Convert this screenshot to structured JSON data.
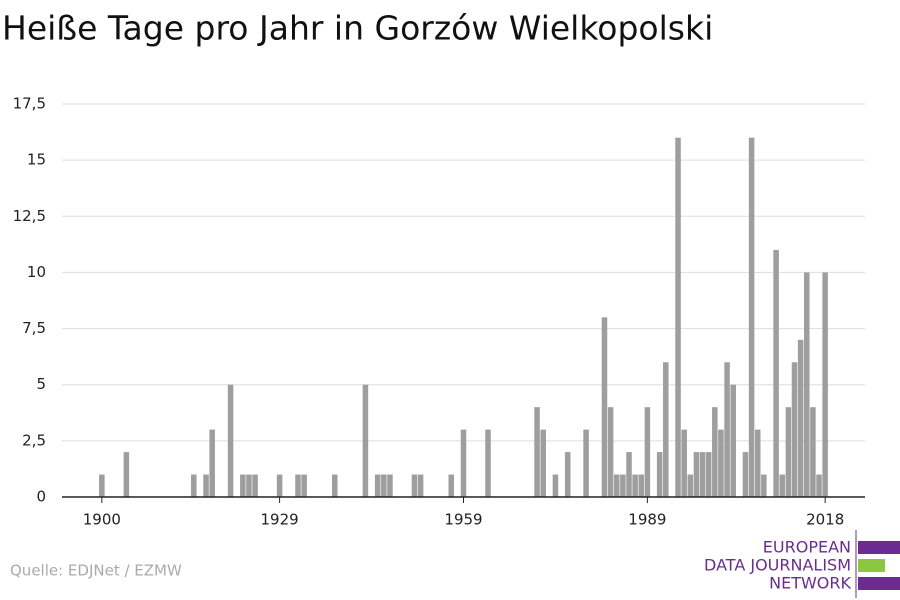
{
  "chart_data": {
    "type": "bar",
    "title": "Heiße Tage pro Jahr in Gorzów Wielkopolski",
    "source": "Quelle: EDJNet / EZMW",
    "logo": [
      "EUROPEAN",
      "DATA JOURNALISM",
      "NETWORK"
    ],
    "color": "#9e9e9e",
    "x": [
      1900,
      1904,
      1915,
      1917,
      1918,
      1921,
      1923,
      1924,
      1925,
      1929,
      1932,
      1933,
      1938,
      1943,
      1945,
      1946,
      1947,
      1951,
      1952,
      1957,
      1959,
      1963,
      1971,
      1972,
      1974,
      1976,
      1979,
      1982,
      1983,
      1984,
      1985,
      1986,
      1987,
      1988,
      1989,
      1991,
      1992,
      1994,
      1995,
      1996,
      1997,
      1998,
      1999,
      2000,
      2001,
      2002,
      2003,
      2005,
      2006,
      2007,
      2008,
      2010,
      2011,
      2012,
      2013,
      2014,
      2015,
      2016,
      2017,
      2018
    ],
    "values": [
      1,
      2,
      1,
      1,
      3,
      5,
      1,
      1,
      1,
      1,
      1,
      1,
      1,
      5,
      1,
      1,
      1,
      1,
      1,
      1,
      3,
      3,
      4,
      3,
      1,
      2,
      3,
      8,
      4,
      1,
      1,
      2,
      1,
      1,
      4,
      2,
      6,
      16,
      3,
      1,
      2,
      2,
      2,
      4,
      3,
      6,
      5,
      2,
      16,
      3,
      1,
      11,
      1,
      4,
      6,
      7,
      10,
      4,
      1,
      10
    ],
    "xlim": [
      1893.5,
      2024.5
    ],
    "xticks": [
      1900,
      1929,
      1959,
      1989,
      2018
    ],
    "ylim": [
      0,
      17.5
    ],
    "yticks": [
      0,
      {
        "value": 2.5,
        "label": "2,5"
      },
      5,
      {
        "value": 7.5,
        "label": "7,5"
      },
      10,
      {
        "value": 12.5,
        "label": "12,5"
      },
      15,
      {
        "value": 17.5,
        "label": "17,5"
      }
    ],
    "grid": true
  }
}
